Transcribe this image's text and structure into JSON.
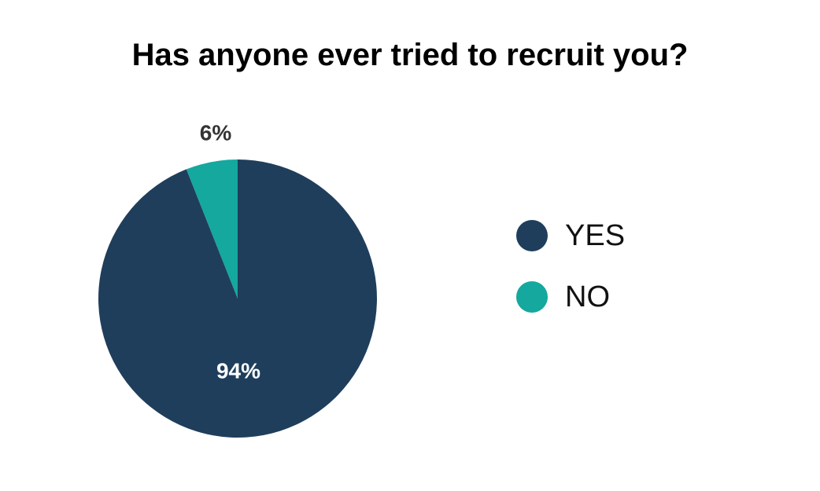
{
  "chart_data": {
    "type": "pie",
    "title": "Has anyone ever tried to recruit you?",
    "slices": [
      {
        "label": "YES",
        "value": 94,
        "display": "94%",
        "color": "#1f3e5c"
      },
      {
        "label": "NO",
        "value": 6,
        "display": "6%",
        "color": "#14a89e"
      }
    ],
    "legend": "right"
  }
}
